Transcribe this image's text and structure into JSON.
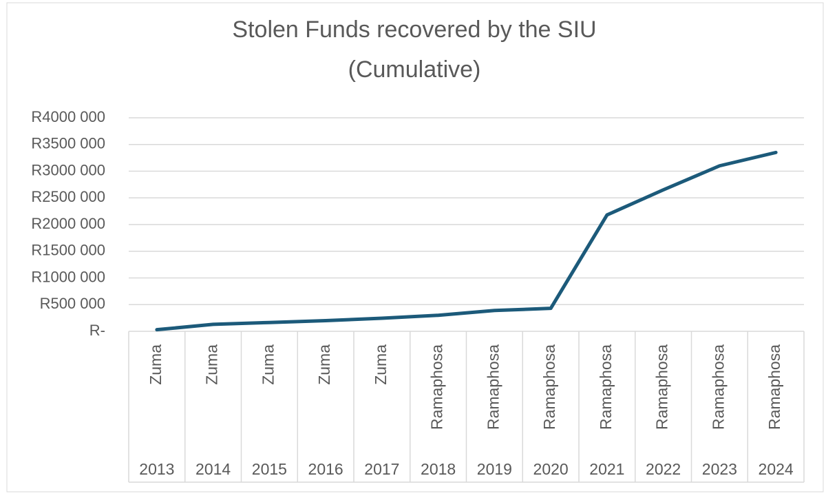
{
  "chart_data": {
    "type": "line",
    "title": [
      "Stolen Funds recovered by the SIU",
      "(Cumulative)"
    ],
    "categories": [
      "2013",
      "2014",
      "2015",
      "2016",
      "2017",
      "2018",
      "2019",
      "2020",
      "2021",
      "2022",
      "2023",
      "2024"
    ],
    "sub_categories": [
      "Zuma",
      "Zuma",
      "Zuma",
      "Zuma",
      "Zuma",
      "Ramaphosa",
      "Ramaphosa",
      "Ramaphosa",
      "Ramaphosa",
      "Ramaphosa",
      "Ramaphosa",
      "Ramaphosa"
    ],
    "color": "#1c5a7a",
    "values": [
      30000,
      130000,
      165000,
      200000,
      245000,
      300000,
      390000,
      430000,
      2180000,
      2650000,
      3100000,
      3350000
    ],
    "ylim": [
      0,
      4000000
    ],
    "yticks": [
      {
        "value": 0,
        "label": "R-"
      },
      {
        "value": 500000,
        "label": "R500 000"
      },
      {
        "value": 1000000,
        "label": "R1000 000"
      },
      {
        "value": 1500000,
        "label": "R1500 000"
      },
      {
        "value": 2000000,
        "label": "R2000 000"
      },
      {
        "value": 2500000,
        "label": "R2500 000"
      },
      {
        "value": 3000000,
        "label": "R3000 000"
      },
      {
        "value": 3500000,
        "label": "R3500 000"
      },
      {
        "value": 4000000,
        "label": "R4000 000"
      }
    ],
    "grid": true
  }
}
